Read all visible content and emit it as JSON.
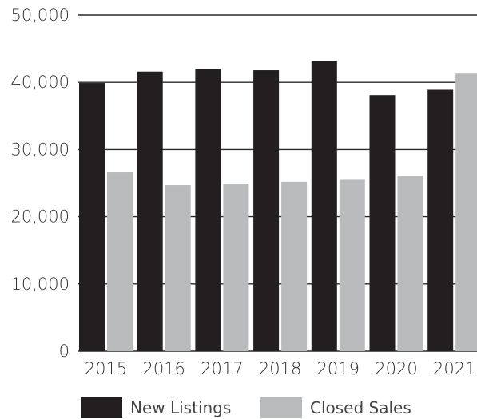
{
  "chart_data": {
    "type": "bar",
    "categories": [
      "2015",
      "2016",
      "2017",
      "2018",
      "2019",
      "2020",
      "2021"
    ],
    "series": [
      {
        "name": "New Listings",
        "color": "#231f20",
        "values": [
          39900,
          41600,
          42000,
          41800,
          43200,
          38100,
          38900
        ]
      },
      {
        "name": "Closed Sales",
        "color": "#b9babc",
        "values": [
          26600,
          24700,
          24900,
          25200,
          25600,
          26100,
          41300
        ]
      }
    ],
    "yticks": [
      "0",
      "10,000",
      "20,000",
      "30,000",
      "40,000",
      "50,000"
    ],
    "ylim": [
      0,
      50000
    ],
    "grid": true,
    "legend_position": "bottom"
  }
}
